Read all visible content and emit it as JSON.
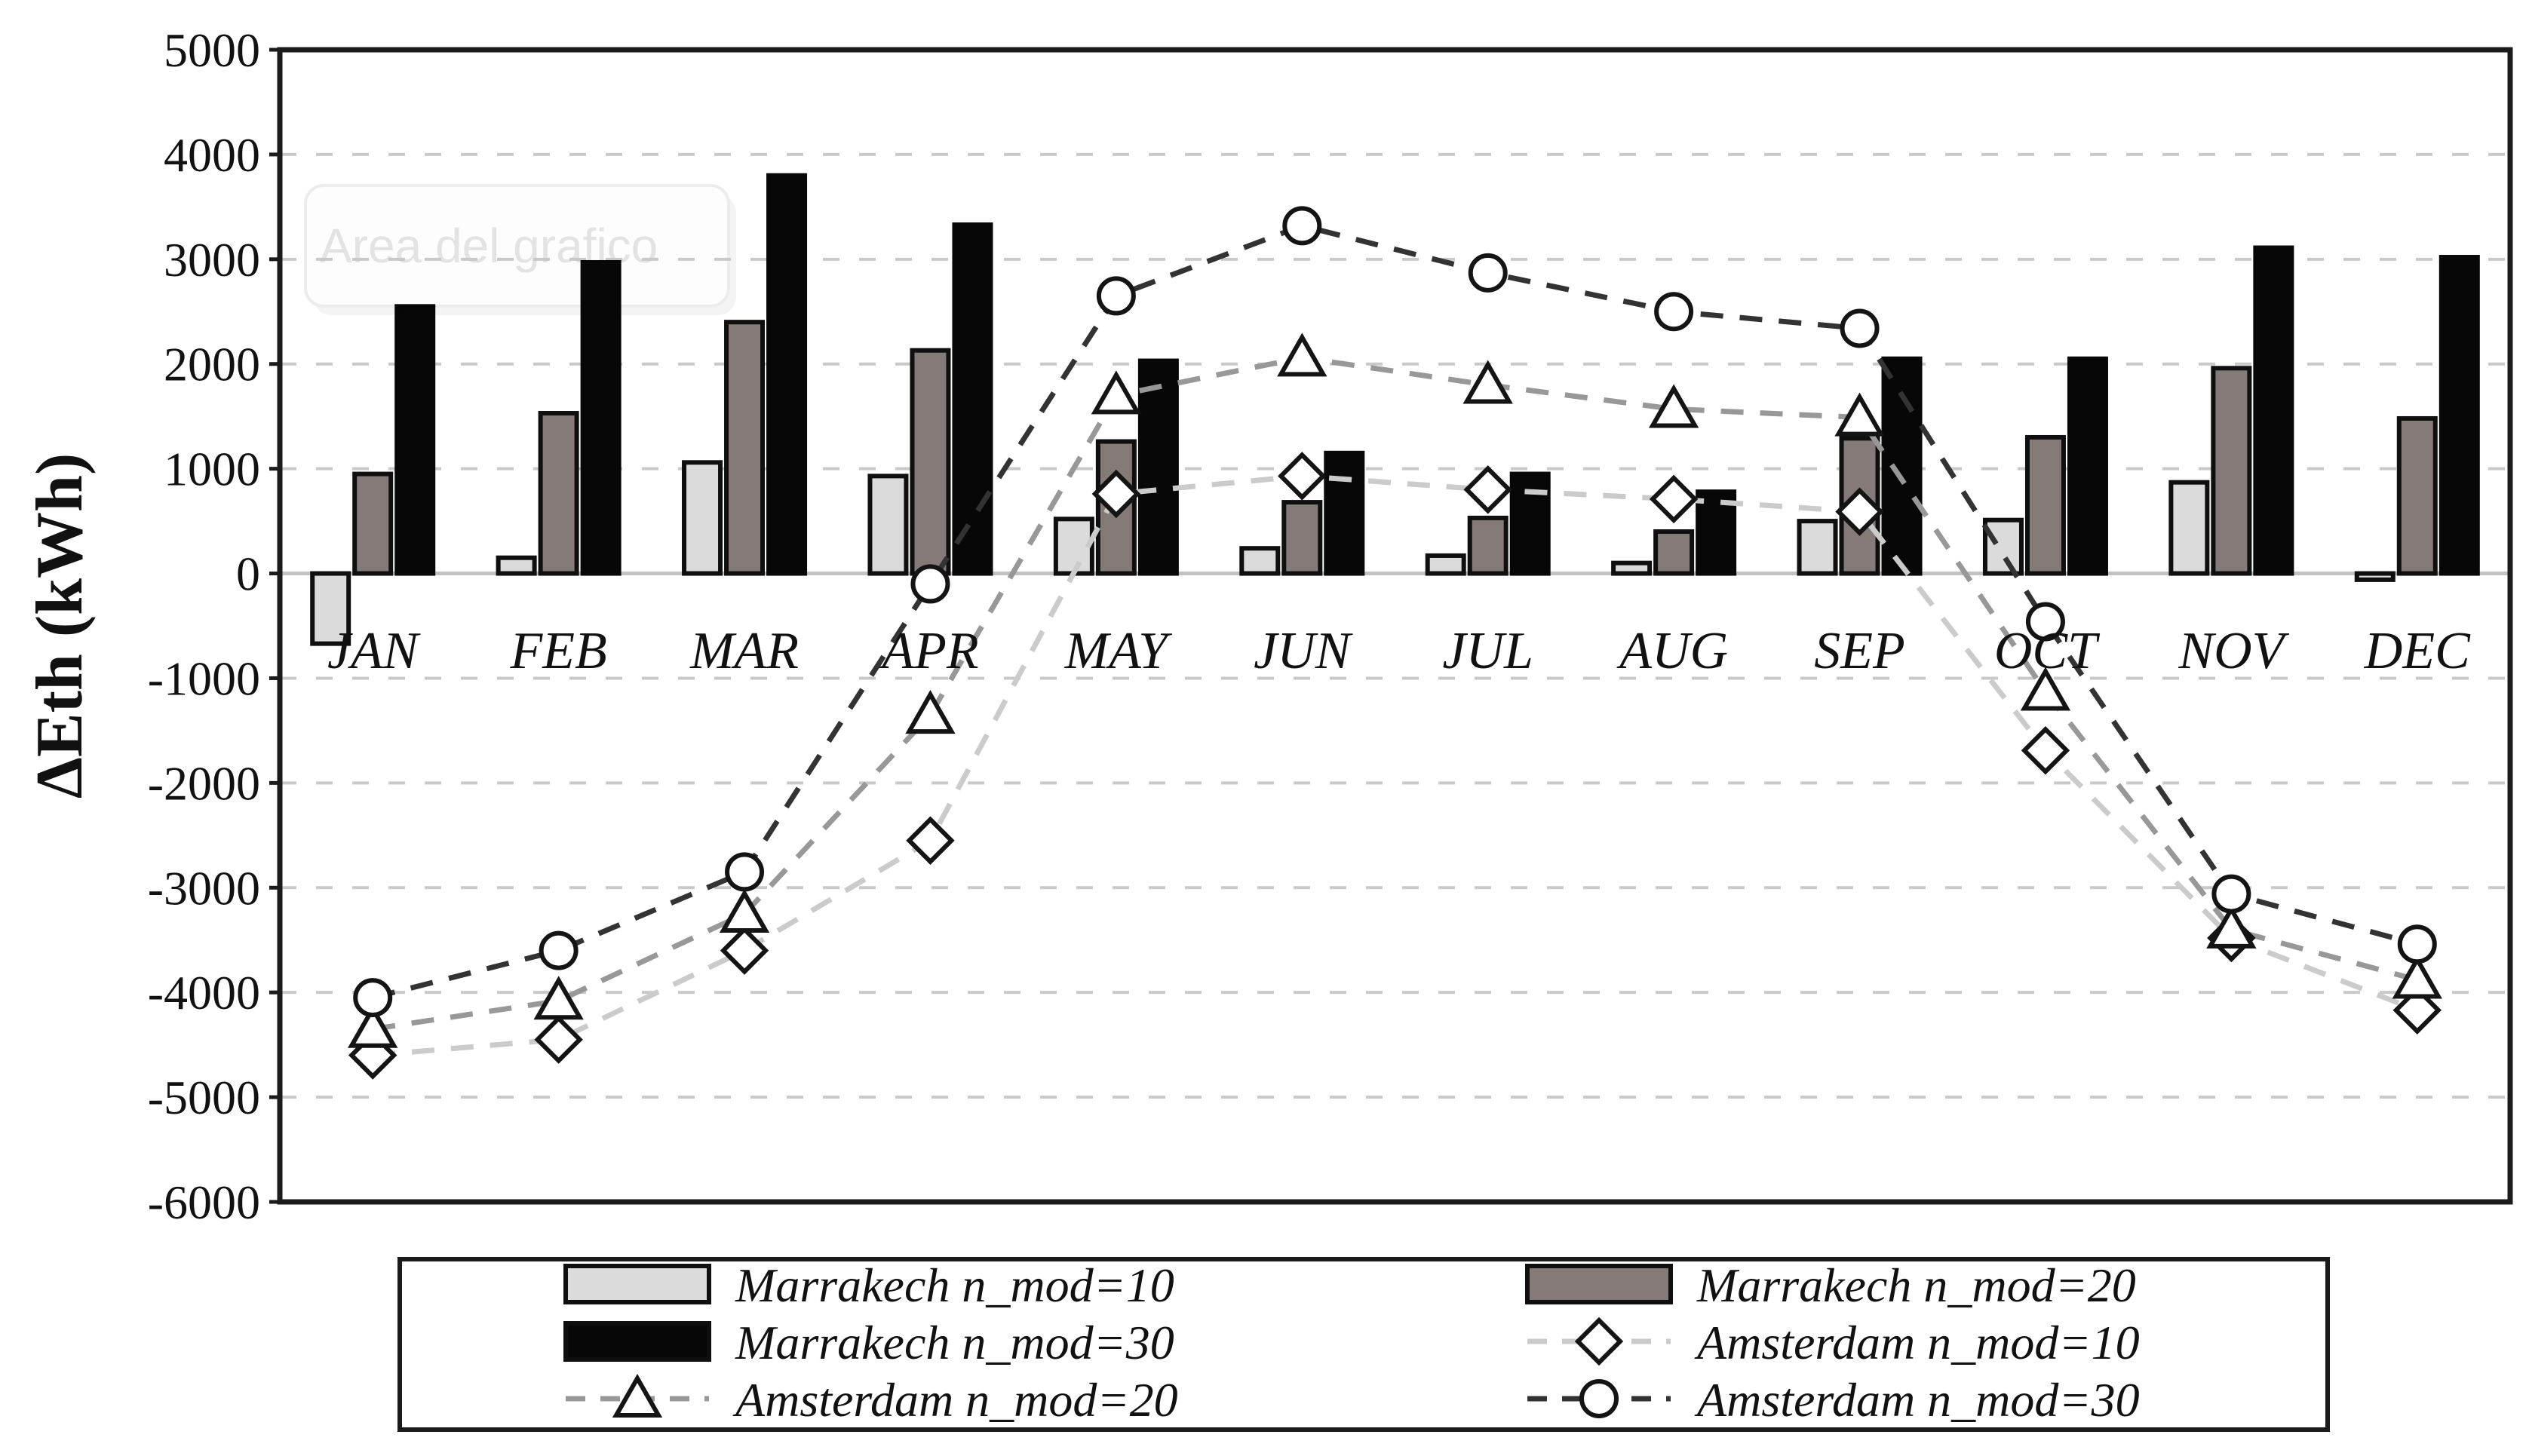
{
  "figure": {
    "background": "#ffffff",
    "y_axis_title": "ΔEth (kWh)",
    "watermark": {
      "text": "Area del grafico"
    },
    "colors": {
      "frame": "#1b1b1b",
      "grid": "#c9c9c9",
      "zero_line": "#c2c2c2",
      "tick_text": "#111111",
      "watermark_fill": "#fdfdfd",
      "watermark_border": "#ececec",
      "watermark_text": "#e3e3e3",
      "watermark_shadow": "#f4f4f4",
      "marker_stroke": "#141414",
      "marker_fill": "#ffffff"
    }
  },
  "chart_data": {
    "type": "bar+line",
    "title": "",
    "xlabel": "",
    "ylabel": "ΔEth (kWh)",
    "ylim": [
      -6000,
      5000
    ],
    "y_ticks": [
      5000,
      4000,
      3000,
      2000,
      1000,
      0,
      -1000,
      -2000,
      -3000,
      -4000,
      -5000,
      -6000
    ],
    "grid": "horizontal-dashed",
    "legend_position": "bottom",
    "categories": [
      "JAN",
      "FEB",
      "MAR",
      "APR",
      "MAY",
      "JUN",
      "JUL",
      "AUG",
      "SEP",
      "OCT",
      "NOV",
      "DEC"
    ],
    "bar_series": [
      {
        "name": "Marrakech n_mod=10",
        "key": "marrakech-nmod10",
        "color": "#dbdbdb",
        "border": "#0f0f0f",
        "values": [
          -670,
          150,
          1060,
          930,
          520,
          240,
          170,
          100,
          500,
          510,
          870,
          -60
        ]
      },
      {
        "name": "Marrakech n_mod=20",
        "key": "marrakech-nmod20",
        "color": "#847b78",
        "border": "#0f0f0f",
        "values": [
          950,
          1530,
          2400,
          2130,
          1260,
          680,
          530,
          400,
          1290,
          1300,
          1960,
          1480
        ]
      },
      {
        "name": "Marrakech n_mod=30",
        "key": "marrakech-nmod30",
        "color": "#070707",
        "border": "#070707",
        "values": [
          2550,
          2970,
          3800,
          3330,
          2030,
          1150,
          950,
          780,
          2050,
          2050,
          3110,
          3020
        ]
      }
    ],
    "line_series": [
      {
        "name": "Amsterdam n_mod=10",
        "key": "amsterdam-nmod10",
        "marker": "diamond",
        "line_color": "#cbcbcb",
        "values": [
          -4600,
          -4450,
          -3600,
          -2550,
          760,
          930,
          800,
          710,
          590,
          -1690,
          -3480,
          -4170
        ]
      },
      {
        "name": "Amsterdam n_mod=20",
        "key": "amsterdam-nmod20",
        "marker": "triangle",
        "line_color": "#989898",
        "values": [
          -4350,
          -4080,
          -3250,
          -1350,
          1700,
          2060,
          1800,
          1570,
          1490,
          -1130,
          -3400,
          -3880
        ]
      },
      {
        "name": "Amsterdam n_mod=30",
        "key": "amsterdam-nmod30",
        "marker": "circle",
        "line_color": "#333333",
        "values": [
          -4050,
          -3600,
          -2850,
          -100,
          2650,
          3320,
          2870,
          2500,
          2340,
          -460,
          -3060,
          -3540
        ]
      }
    ]
  },
  "legend": {
    "rows": [
      [
        {
          "label": "Marrakech n_mod=10",
          "swatch": "bar",
          "series": "marrakech-nmod10"
        },
        {
          "label": "Marrakech n_mod=20",
          "swatch": "bar",
          "series": "marrakech-nmod20"
        }
      ],
      [
        {
          "label": "Marrakech n_mod=30",
          "swatch": "bar",
          "series": "marrakech-nmod30"
        },
        {
          "label": "Amsterdam n_mod=10",
          "swatch": "marker",
          "series": "amsterdam-nmod10"
        }
      ],
      [
        {
          "label": "Amsterdam n_mod=20",
          "swatch": "marker",
          "series": "amsterdam-nmod20"
        },
        {
          "label": "Amsterdam n_mod=30",
          "swatch": "marker",
          "series": "amsterdam-nmod30"
        }
      ]
    ]
  }
}
